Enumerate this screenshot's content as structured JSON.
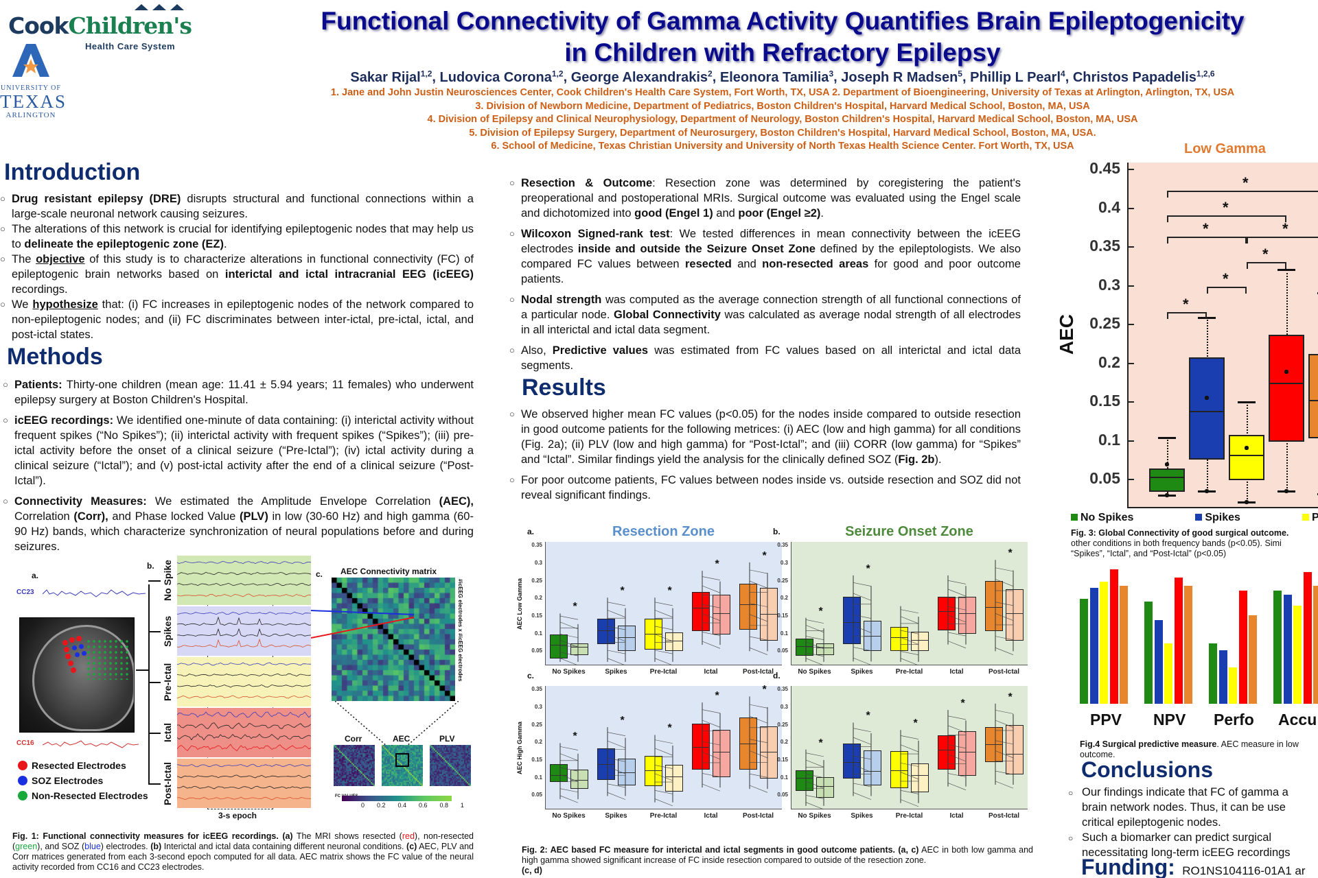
{
  "logos": {
    "cook_part1": "Cook",
    "cook_part2": "Children's",
    "cook_sub": "Health Care System",
    "uta_line1": "UNIVERSITY OF",
    "uta_line2": "TEXAS",
    "uta_line3": "ARLINGTON"
  },
  "header": {
    "title_line1": "Functional Connectivity of Gamma Activity Quantifies Brain Epileptogenicity",
    "title_line2": "in Children with Refractory Epilepsy",
    "authors": [
      {
        "name": "Sakar Rijal",
        "sup": "1,2"
      },
      {
        "name": "Ludovica Corona",
        "sup": "1,2"
      },
      {
        "name": "George Alexandrakis",
        "sup": "2"
      },
      {
        "name": "Eleonora Tamilia",
        "sup": "3"
      },
      {
        "name": "Joseph R Madsen",
        "sup": "5"
      },
      {
        "name": "Phillip L Pearl",
        "sup": "4"
      },
      {
        "name": "Christos Papadelis",
        "sup": "1,2,6"
      }
    ],
    "affiliations": [
      "1.  Jane and John Justin Neurosciences Center, Cook Children's Health Care System, Fort Worth, TX, USA 2. Department of Bioengineering, University of Texas at Arlington, Arlington, TX, USA",
      "3. Division of Newborn Medicine, Department of Pediatrics, Boston Children's Hospital, Harvard Medical School, Boston, MA, USA",
      "4. Division of Epilepsy and Clinical Neurophysiology, Department of Neurology, Boston Children's Hospital, Harvard Medical School, Boston, MA, USA",
      "5. Division of Epilepsy Surgery, Department of Neurosurgery, Boston Children's Hospital, Harvard Medical School, Boston, MA, USA.",
      "6. School of Medicine, Texas Christian University and University of North Texas Health Science Center. Fort Worth, TX, USA"
    ]
  },
  "introduction": {
    "heading": "Introduction",
    "bullets": [
      {
        "b1": "Drug resistant epilepsy (DRE)",
        "t1": " disrupts structural and functional connections within a large-scale neuronal network causing seizures."
      },
      {
        "t0": "The alterations of this network is crucial for identifying epileptogenic nodes that may help us to ",
        "b1": "delineate the epileptogenic zone (EZ)",
        "t1": "."
      },
      {
        "t0": "The ",
        "u1": "objective",
        "t1": " of this study is to characterize alterations in functional connectivity (FC) of epileptogenic brain networks based on ",
        "b2": "interictal and ictal intracranial EEG (icEEG)",
        "t2": " recordings."
      },
      {
        "t0": "We ",
        "u1": "hypothesize",
        "t1": " that: (i) FC increases in epileptogenic nodes of the network compared to non-epileptogenic nodes; and (ii) FC discriminates between inter-ictal, pre-ictal, ictal, and post-ictal states."
      }
    ]
  },
  "methods": {
    "heading": "Methods",
    "bullets": [
      {
        "b1": "Patients:",
        "t1": " Thirty-one children (mean age: 11.41 ± 5.94 years; 11 females) who underwent epilepsy surgery at Boston Children's Hospital."
      },
      {
        "b1": "icEEG recordings:",
        "t1": " We identified one-minute of data containing: (i) interictal activity without frequent spikes (“No Spikes”); (ii) interictal activity with frequent spikes (“Spikes”); (iii) pre-ictal activity before the onset of a clinical seizure (“Pre-Ictal”); (iv) ictal activity during a clinical seizure (“Ictal”); and (v) post-ictal activity after the end of a clinical seizure (“Post-Ictal”)."
      },
      {
        "b1": "Connectivity Measures:",
        "t1": " We estimated the Amplitude Envelope Correlation ",
        "b2": "(AEC),",
        "t2": " Correlation ",
        "b3": "(Corr),",
        "t3": " and Phase locked Value ",
        "b4": "(PLV)",
        "t4": " in low (30-60 Hz) and high gamma (60-90 Hz) bands, which characterize synchronization of neural populations before and during seizures."
      }
    ],
    "col2_bullets": [
      {
        "b1": "Resection & Outcome",
        "t1": ": Resection zone was determined by coregistering the patient's preoperational and postoperational MRIs. Surgical outcome was evaluated using the Engel scale and dichotomized into ",
        "b2": "good (Engel 1)",
        "t2": " and ",
        "b3": "poor (Engel ≥2)",
        "t3": "."
      },
      {
        "b1": "Wilcoxon Signed-rank test",
        "t1": ": We tested differences in mean connectivity between the icEEG electrodes ",
        "b2": "inside and outside the Seizure Onset Zone",
        "t2": "  defined by the epileptologists. We also compared FC values between ",
        "b3": "resected",
        "t3": " and ",
        "b4": "non-resected areas",
        "t4": " for good and poor outcome patients."
      },
      {
        "b1": "Nodal strength",
        "t1": " was  computed as the average connection strength of all functional connections of a particular node. ",
        "b2": "Global Connectivity",
        "t2": " was calculated as average nodal strength of all electrodes in all interictal and ictal data segment."
      },
      {
        "t0": "Also, ",
        "b1": "Predictive values",
        "t1": " was estimated from FC values based on  all  interictal and ictal data segments."
      }
    ]
  },
  "results": {
    "heading": "Results",
    "bullets": [
      {
        "t0": "We observed higher mean FC values (p<0.05) for the nodes inside compared to outside resection in good outcome patients for the following metrices: (i) AEC (low and high gamma) for all conditions (Fig. 2a); (ii) PLV (low and high gamma) for “Post-Ictal”; and (iii) CORR (low gamma) for “Spikes” and “Ictal”. Similar findings yield the analysis for the clinically defined SOZ (",
        "b1": "Fig. 2b",
        "t1": ")."
      },
      {
        "t0": "For poor outcome patients, FC values between nodes inside vs. outside resection and SOZ did not reveal significant findings."
      }
    ]
  },
  "fig1": {
    "label_a": "a.",
    "label_b": "b.",
    "label_c": "c.",
    "cc23": "CC23",
    "cc16": "CC16",
    "legend": [
      {
        "label": "Resected Electrodes",
        "color": "#e8161b"
      },
      {
        "label": "SOZ Electrodes",
        "color": "#1a2fe0"
      },
      {
        "label": "Non-Resected Electrodes",
        "color": "#18a83c"
      }
    ],
    "conditions": [
      {
        "label": "No Spike",
        "bg": "#d2e8b4"
      },
      {
        "label": "Spikes",
        "bg": "#d6d8f5"
      },
      {
        "label": "Pre-Ictal",
        "bg": "#f7f2b8"
      },
      {
        "label": "Ictal",
        "bg": "#ee8f88"
      },
      {
        "label": "Post-Ictal",
        "bg": "#f6b48c"
      }
    ],
    "epoch_label": "3-s epoch",
    "matrix_title": "AEC Connectivity matrix",
    "matrix_axis": "#icEEG electrodes x #icEEG electrodes",
    "mini_titles": [
      "Corr",
      "AEC",
      "PLV"
    ],
    "colorbar_label": "FC VALUES",
    "colorbar_ticks": [
      "0",
      "0.2",
      "0.4",
      "0.6",
      "0.8",
      "1"
    ],
    "caption_bold": "Fig. 1: Functional connectivity measures for icEEG recordings.",
    "caption_a_b": " (a)",
    "caption_t1": " The MRI shows resected (",
    "caption_red": "red",
    "caption_t2": "), non-resected (",
    "caption_green": "green",
    "caption_t3": "), and SOZ (",
    "caption_blue": "blue",
    "caption_t4": ") electrodes. ",
    "caption_b_b": "(b)",
    "caption_t5": " Interictal and ictal data containing different neuronal conditions. ",
    "caption_c_b": "(c)",
    "caption_t6": " AEC, PLV and Corr matrices generated from each 3-second epoch computed for all data. AEC matrix shows the FC value of the neural activity recorded from CC16 and CC23 electrodes."
  },
  "fig2": {
    "title_a": "Resection Zone",
    "title_b": "Seizure Onset Zone",
    "ylabel_top": "AEC Low Gamma",
    "ylabel_bottom": "AEC High Gamma",
    "yticks": [
      "0.35",
      "0.3",
      "0.25",
      "0.2",
      "0.15",
      "0.1",
      "0.05"
    ],
    "categories": [
      "No Spikes",
      "Spikes",
      "Pre-Ictal",
      "Ictal",
      "Post-Ictal"
    ],
    "star": "*",
    "caption_bold": "Fig. 2: AEC based FC measure for interictal and ictal segments in good outcome patients. (a, c)",
    "caption_text": " AEC in both low gamma and high gamma showed significant increase of FC inside resection compared to  outside of the resection zone.",
    "caption_tail": "(c, d)"
  },
  "fig3": {
    "title": "Low Gamma",
    "ylabel": "AEC",
    "yticks": [
      "0.45",
      "0.4",
      "0.35",
      "0.3",
      "0.25",
      "0.2",
      "0.15",
      "0.1",
      "0.05"
    ],
    "legend": [
      {
        "label": "No Spikes",
        "color": "#1e8a14"
      },
      {
        "label": "Spikes",
        "color": "#1a3db0"
      },
      {
        "label": "Pre-Ict",
        "color": "#ffff00"
      }
    ],
    "caption_bold": "Fig. 3: Global Connectivity of good surgical outcome.",
    "caption_l2": "other conditions in both frequency bands (p<0.05). Simi",
    "caption_l3": "“Spikes”, “Ictal”, and “Post-Ictal” (p<0.05)"
  },
  "fig4": {
    "groups": [
      "PPV",
      "NPV",
      "Perfo",
      "Accu"
    ],
    "caption_bold": "Fig.4 Surgical predictive measure",
    "caption_text": ". AEC measure in low",
    "caption_l2": "outcome."
  },
  "conclusions": {
    "heading": "Conclusions",
    "bullets": [
      [
        "Our findings indicate that FC of gamma a",
        "brain network nodes. Thus, it can be use",
        "critical epileptogenic nodes."
      ],
      [
        "Such a biomarker can predict surgical",
        "necessitating long-term icEEG recordings"
      ]
    ]
  },
  "funding": {
    "heading": "Funding:",
    "text": "RO1NS104116-01A1 ar"
  },
  "chart_data": [
    {
      "type": "box",
      "title": "Low Gamma",
      "ylabel": "AEC",
      "ylim": [
        0.01,
        0.46
      ],
      "categories": [
        "No Spikes",
        "Spikes",
        "Pre-Ictal",
        "Ictal",
        "Post-Ictal"
      ],
      "series": [
        {
          "name": "No Spikes",
          "q1": 0.033,
          "median": 0.053,
          "q3": 0.063,
          "min": 0.029,
          "max": 0.103,
          "color": "#1e8a14"
        },
        {
          "name": "Spikes",
          "q1": 0.075,
          "median": 0.138,
          "q3": 0.207,
          "min": 0.034,
          "max": 0.258,
          "color": "#1a3db0"
        },
        {
          "name": "Pre-Ictal",
          "q1": 0.048,
          "median": 0.081,
          "q3": 0.107,
          "min": 0.02,
          "max": 0.149,
          "color": "#ffff00"
        },
        {
          "name": "Ictal",
          "q1": 0.098,
          "median": 0.174,
          "q3": 0.236,
          "min": 0.034,
          "max": 0.32,
          "color": "#ff0000"
        },
        {
          "name": "Post-Ictal",
          "q1": 0.102,
          "median": 0.152,
          "q3": 0.211,
          "min": 0.031,
          "max": 0.29,
          "color": "#e8862e"
        }
      ],
      "significance_brackets": [
        [
          "No Spikes",
          "Spikes"
        ],
        [
          "Spikes",
          "Pre-Ictal"
        ],
        [
          "Pre-Ictal",
          "Ictal"
        ],
        [
          "No Spikes",
          "Pre-Ictal"
        ],
        [
          "Pre-Ictal",
          "Post-Ictal"
        ],
        [
          "No Spikes",
          "Ictal"
        ],
        [
          "No Spikes",
          "Post-Ictal"
        ]
      ]
    },
    {
      "type": "bar",
      "title": "Fig.4 Surgical predictive measure",
      "categories": [
        "PPV",
        "NPV",
        "Perfo",
        "Accu"
      ],
      "series": [
        {
          "name": "No Spikes",
          "color": "#1e8a14",
          "values": [
            0.78,
            0.76,
            0.45,
            0.84
          ]
        },
        {
          "name": "Spikes",
          "color": "#1a3db0",
          "values": [
            0.86,
            0.62,
            0.4,
            0.81
          ]
        },
        {
          "name": "Pre-Ictal",
          "color": "#ffff00",
          "values": [
            0.91,
            0.45,
            0.27,
            0.73
          ]
        },
        {
          "name": "Ictal",
          "color": "#ff0000",
          "values": [
            1.0,
            0.94,
            0.84,
            0.98
          ]
        },
        {
          "name": "Post-Ictal",
          "color": "#e8862e",
          "values": [
            0.88,
            0.88,
            0.66,
            0.88
          ]
        }
      ]
    },
    {
      "type": "box",
      "title": "Resection Zone (a) - AEC Low Gamma",
      "ylim": [
        0.01,
        0.36
      ],
      "categories": [
        "No Spikes",
        "Spikes",
        "Pre-Ictal",
        "Ictal",
        "Post-Ictal"
      ],
      "series": [
        {
          "name": "Inside",
          "medians": [
            0.068,
            0.11,
            0.1,
            0.173,
            0.183
          ],
          "q1": [
            0.03,
            0.07,
            0.055,
            0.108,
            0.111
          ],
          "q3": [
            0.097,
            0.142,
            0.142,
            0.218,
            0.242
          ]
        },
        {
          "name": "Outside",
          "medians": [
            0.062,
            0.09,
            0.08,
            0.158,
            0.156
          ],
          "q1": [
            0.04,
            0.05,
            0.05,
            0.098,
            0.08
          ],
          "q3": [
            0.073,
            0.122,
            0.103,
            0.21,
            0.23
          ]
        }
      ],
      "significant": [
        true,
        true,
        true,
        true,
        true
      ]
    },
    {
      "type": "box",
      "title": "Seizure Onset Zone (b) - AEC Low Gamma",
      "ylim": [
        0.01,
        0.36
      ],
      "categories": [
        "No Spikes",
        "Spikes",
        "Pre-Ictal",
        "Ictal",
        "Post-Ictal"
      ],
      "series": [
        {
          "name": "Inside",
          "medians": [
            0.065,
            0.133,
            0.089,
            0.163,
            0.175
          ],
          "q1": [
            0.037,
            0.071,
            0.05,
            0.11,
            0.108
          ],
          "q3": [
            0.085,
            0.205,
            0.118,
            0.205,
            0.249
          ]
        },
        {
          "name": "Outside",
          "medians": [
            0.06,
            0.094,
            0.082,
            0.158,
            0.158
          ],
          "q1": [
            0.04,
            0.051,
            0.05,
            0.099,
            0.08
          ],
          "q3": [
            0.073,
            0.137,
            0.105,
            0.205,
            0.225
          ]
        }
      ],
      "significant": [
        true,
        true,
        false,
        false,
        true
      ]
    },
    {
      "type": "box",
      "title": "Resection Zone (c) - AEC High Gamma",
      "ylim": [
        0.01,
        0.36
      ],
      "categories": [
        "No Spikes",
        "Spikes",
        "Pre-Ictal",
        "Ictal",
        "Post-Ictal"
      ],
      "series": [
        {
          "name": "Inside",
          "medians": [
            0.108,
            0.138,
            0.12,
            0.186,
            0.197
          ],
          "q1": [
            0.088,
            0.094,
            0.077,
            0.123,
            0.122
          ],
          "q3": [
            0.138,
            0.183,
            0.161,
            0.253,
            0.27
          ]
        },
        {
          "name": "Outside",
          "medians": [
            0.094,
            0.115,
            0.104,
            0.174,
            0.174
          ],
          "q1": [
            0.069,
            0.078,
            0.06,
            0.102,
            0.098
          ],
          "q3": [
            0.122,
            0.154,
            0.137,
            0.235,
            0.245
          ]
        }
      ],
      "significant": [
        true,
        true,
        true,
        true,
        true
      ]
    },
    {
      "type": "box",
      "title": "Seizure Onset Zone (d) - AEC High Gamma",
      "ylim": [
        0.01,
        0.36
      ],
      "categories": [
        "No Spikes",
        "Spikes",
        "Pre-Ictal",
        "Ictal",
        "Post-Ictal"
      ],
      "series": [
        {
          "name": "Inside",
          "medians": [
            0.1,
            0.145,
            0.12,
            0.18,
            0.195
          ],
          "q1": [
            0.062,
            0.098,
            0.07,
            0.122,
            0.144
          ],
          "q3": [
            0.12,
            0.196,
            0.175,
            0.22,
            0.243
          ]
        },
        {
          "name": "Outside",
          "medians": [
            0.076,
            0.118,
            0.108,
            0.173,
            0.167
          ],
          "q1": [
            0.043,
            0.078,
            0.058,
            0.105,
            0.11
          ],
          "q3": [
            0.102,
            0.177,
            0.14,
            0.232,
            0.25
          ]
        }
      ],
      "significant": [
        true,
        true,
        true,
        true,
        true
      ]
    }
  ]
}
